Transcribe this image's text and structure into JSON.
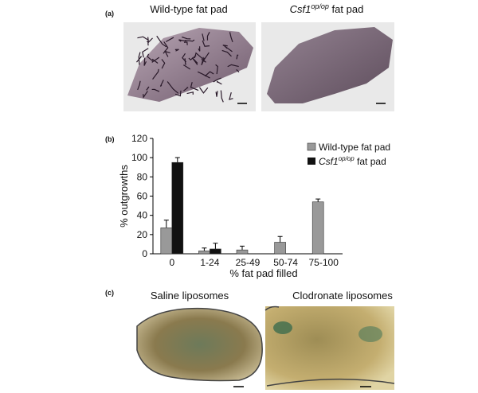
{
  "panel_a": {
    "label": "(a)",
    "left_title": "Wild-type fat pad",
    "right_title": [
      "Csf1",
      "op/op",
      " fat pad"
    ]
  },
  "chart_data": {
    "label": "(b)",
    "type": "bar",
    "categories": [
      "0",
      "1-24",
      "25-49",
      "50-74",
      "75-100"
    ],
    "series": [
      {
        "name": [
          "Wild-type fat pad"
        ],
        "color": "#999999",
        "values": [
          27,
          3,
          4,
          12,
          54
        ],
        "errors": [
          8,
          3,
          4,
          6,
          3
        ]
      },
      {
        "name": [
          "Csf1",
          "op/op",
          " fat pad"
        ],
        "color": "#111111",
        "values": [
          95,
          5,
          null,
          null,
          null
        ],
        "errors": [
          5,
          6,
          null,
          null,
          null
        ]
      }
    ],
    "ylabel": "% outgrowths",
    "xlabel": "% fat pad filled",
    "ylim": [
      0,
      120
    ],
    "yticks": [
      0,
      20,
      40,
      60,
      80,
      100,
      120
    ],
    "legend": "upper right"
  },
  "panel_c": {
    "label": "(c)",
    "left_title": "Saline liposomes",
    "right_title": "Clodronate liposomes"
  }
}
